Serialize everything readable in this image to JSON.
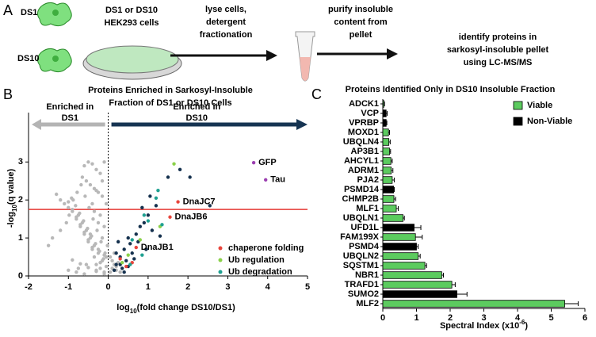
{
  "panel_labels": [
    "A",
    "B",
    "C"
  ],
  "schematic": {
    "cell_1": "DS1",
    "cell_2": "DS10",
    "dish": [
      "DS1 or DS10",
      "HEK293 cells"
    ],
    "step_1": [
      "lyse cells,",
      "detergent",
      "fractionation"
    ],
    "step_2": [
      "purify insoluble",
      "content from",
      "pellet"
    ],
    "step_3": [
      "identify proteins in",
      "sarkosyl-insoluble pellet",
      "using LC-MS/MS"
    ]
  },
  "chart_data": [
    {
      "type": "scatter",
      "title": [
        "Proteins Enriched in Sarkosyl-Insoluble",
        "Fraction of DS1 or DS10 Cells"
      ],
      "x_label": [
        "log",
        "10",
        "(fold change DS10/DS1)"
      ],
      "y_label": [
        "-log",
        "10",
        "(q value)"
      ],
      "xlim": [
        -2,
        5
      ],
      "ylim": [
        0,
        4.3
      ],
      "xticks": [
        -2,
        -1,
        0,
        1,
        2,
        3,
        4,
        5
      ],
      "yticks": [
        0,
        1,
        2,
        3
      ],
      "annotations": [
        {
          "text": [
            "Enriched in",
            "DS1"
          ],
          "color": "#b4b4b4"
        },
        {
          "text": [
            "Enriched in",
            "DS10"
          ],
          "color": "#163452"
        }
      ],
      "threshold": {
        "value": 1.75,
        "color": "#e53935"
      },
      "series": [
        {
          "color": "#b8b8b8",
          "x": [
            -0.1,
            -0.2,
            -0.3,
            -0.15,
            -0.05,
            -0.25,
            -0.4,
            -0.35,
            -0.5,
            -0.45,
            -0.6,
            -0.55,
            -0.7,
            -0.65,
            -0.8,
            -0.75,
            -0.9,
            -1.0,
            -1.1,
            -1.2,
            -0.3,
            -0.2,
            -0.1,
            -0.4,
            -0.5,
            -0.6,
            -0.7,
            -0.8,
            -0.9,
            -1.0,
            -0.15,
            -0.25,
            -0.35,
            -0.45,
            -0.55,
            -0.65,
            -0.05,
            -0.12,
            -0.22,
            -0.32,
            -0.42,
            -0.52,
            -0.62,
            -0.72,
            -0.82,
            -0.92,
            -0.2,
            -0.3,
            -0.4,
            -0.5,
            -0.6,
            -0.1,
            -0.3,
            -0.5,
            -0.7,
            -0.9,
            -1.3,
            -0.08,
            -0.18,
            -0.28,
            -0.38,
            -0.48,
            -0.58,
            -0.68,
            -0.78,
            -0.88,
            -0.98,
            -1.05,
            -0.15,
            -0.35,
            -0.55,
            -0.75,
            -0.25,
            -0.45,
            0.05,
            0.1,
            0.15,
            0.2,
            0.1,
            0.05,
            0.2,
            0.3,
            0.15,
            0.25,
            -0.02,
            -0.6,
            -0.8,
            -1.0,
            -0.4,
            -0.3,
            -1.5,
            -1.2,
            -1.4,
            -0.2,
            -0.1,
            -0.05,
            -0.15,
            -0.1,
            -0.25,
            -0.35
          ],
          "values": [
            0.1,
            0.2,
            0.3,
            0.4,
            0.5,
            0.6,
            0.7,
            0.8,
            0.9,
            1.0,
            1.1,
            1.2,
            1.3,
            1.4,
            1.5,
            1.6,
            1.7,
            1.8,
            1.9,
            2.0,
            0.15,
            0.35,
            0.55,
            0.75,
            0.95,
            1.15,
            1.35,
            1.55,
            1.75,
            1.95,
            2.1,
            2.2,
            2.3,
            2.4,
            2.5,
            2.6,
            0.25,
            0.45,
            0.65,
            0.85,
            1.05,
            1.25,
            1.45,
            1.65,
            1.85,
            2.05,
            2.7,
            2.8,
            2.95,
            3.0,
            2.9,
            0.05,
            0.12,
            0.22,
            0.32,
            0.42,
            2.15,
            0.6,
            0.9,
            1.2,
            1.5,
            1.8,
            2.1,
            2.4,
            2.2,
            2.0,
            1.6,
            1.4,
            1.0,
            0.5,
            0.3,
            0.2,
            0.7,
            1.1,
            0.1,
            0.2,
            0.3,
            0.15,
            0.4,
            0.5,
            0.25,
            0.1,
            0.6,
            0.35,
            0.8,
            0.05,
            0.1,
            0.15,
            1.9,
            2.25,
            0.8,
            1.2,
            1.0,
            1.6,
            1.3,
            1.9,
            2.5,
            3.0,
            1.4,
            1.7
          ]
        },
        {
          "color": "#16324f",
          "x": [
            0.2,
            0.3,
            0.4,
            0.25,
            0.5,
            0.35,
            0.45,
            0.6,
            0.7,
            0.8,
            0.9,
            1.0,
            1.1,
            0.55,
            0.65,
            0.15,
            0.75,
            0.3,
            1.2,
            1.5,
            2.05,
            1.3,
            0.85,
            1.8,
            2.55,
            0.4,
            0.5,
            0.95,
            0.2,
            1.05
          ],
          "values": [
            0.3,
            0.5,
            0.7,
            0.9,
            1.0,
            0.2,
            0.4,
            0.6,
            1.1,
            1.3,
            1.4,
            1.6,
            1.2,
            0.85,
            0.45,
            0.15,
            0.9,
            0.3,
            1.85,
            2.6,
            2.6,
            1.05,
            1.8,
            2.8,
            1.85,
            0.1,
            0.25,
            0.7,
            0.6,
            2.1
          ]
        },
        {
          "name": "chaperone folding",
          "color": "#e8453c",
          "x": [
            1.75,
            1.55,
            0.7,
            0.3,
            0.45,
            0.6
          ],
          "values": [
            1.95,
            1.55,
            0.75,
            0.45,
            0.25,
            0.35
          ],
          "labels": [
            "DnaJC7",
            "DnaJB6",
            "DnaJB1",
            null,
            null,
            null
          ]
        },
        {
          "name": "Ub regulation",
          "color": "#8bd14a",
          "x": [
            1.65,
            1.3,
            0.5,
            0.8,
            0.35
          ],
          "values": [
            2.95,
            1.3,
            0.55,
            0.95,
            0.35
          ]
        },
        {
          "name": "Ub degradation",
          "color": "#1fa191",
          "x": [
            1.25,
            1.2,
            1.35,
            0.6,
            0.9,
            0.85,
            0.55,
            1.0
          ],
          "values": [
            2.25,
            2.05,
            1.35,
            0.95,
            1.6,
            0.55,
            0.3,
            1.45
          ]
        },
        {
          "color": "#9b3fb0",
          "x": [
            3.65,
            3.95
          ],
          "values": [
            2.98,
            2.53
          ],
          "labels": [
            "GFP",
            "Tau"
          ]
        }
      ]
    },
    {
      "type": "hbar",
      "title": "Proteins Identified Only in DS10 Insoluble Fraction",
      "x_label": [
        "Spectral Index (x10",
        "-6",
        ")"
      ],
      "categories": [
        "ADCK1",
        "VCP",
        "VPRBP",
        "MOXD1",
        "UBQLN4",
        "AP3B1",
        "AHCYL1",
        "ADRM1",
        "PJA2",
        "PSMD14",
        "CHMP2B",
        "MLF1",
        "UBQLN1",
        "UFD1L",
        "FAM199X",
        "PSMD4",
        "UBQLN2",
        "SQSTM1",
        "NBR1",
        "TRAFD1",
        "SUMO2",
        "MLF2"
      ],
      "xlim": [
        0,
        6
      ],
      "xticks": [
        0,
        1,
        2,
        3,
        4,
        5,
        6
      ],
      "legend": "upper right",
      "series": [
        {
          "name": "Viable",
          "color": "#5ccb5f",
          "values": [
            0.03,
            null,
            null,
            0.17,
            0.18,
            0.2,
            0.24,
            0.25,
            0.28,
            null,
            0.33,
            0.4,
            0.6,
            null,
            0.97,
            null,
            1.05,
            1.25,
            1.75,
            2.05,
            null,
            5.4
          ],
          "errors": [
            0.02,
            null,
            null,
            0.03,
            0.04,
            0.03,
            0.04,
            0.05,
            0.06,
            null,
            0.05,
            0.06,
            0.04,
            null,
            0.2,
            null,
            0.06,
            0.05,
            0.05,
            0.1,
            null,
            0.4
          ]
        },
        {
          "name": "Non-Viable",
          "color": "#000000",
          "values": [
            null,
            0.1,
            0.1,
            null,
            null,
            null,
            null,
            null,
            null,
            0.32,
            null,
            null,
            null,
            0.93,
            null,
            1.0,
            null,
            null,
            null,
            null,
            2.2,
            null
          ],
          "errors": [
            null,
            0.03,
            0.02,
            null,
            null,
            null,
            null,
            null,
            null,
            0.02,
            null,
            null,
            null,
            0.2,
            null,
            0.05,
            null,
            null,
            null,
            null,
            0.3,
            null
          ]
        }
      ]
    }
  ]
}
